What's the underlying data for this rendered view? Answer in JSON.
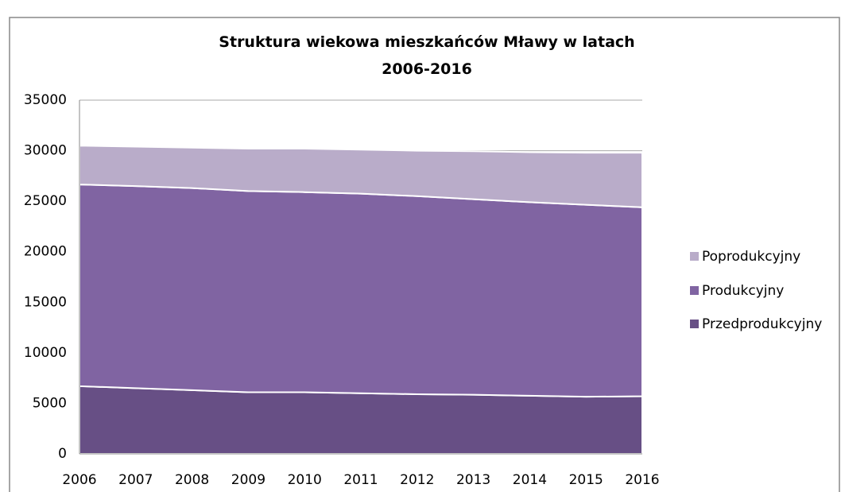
{
  "chart_data": {
    "type": "stacked_area",
    "title": "Struktura wiekowa mieszkańców Mławy w latach\n2006-2016",
    "categories": [
      "2006",
      "2007",
      "2008",
      "2009",
      "2010",
      "2011",
      "2012",
      "2013",
      "2014",
      "2015",
      "2016"
    ],
    "series": [
      {
        "name": "Przedprodukcyjny",
        "color": "#674f85",
        "values": [
          6700,
          6500,
          6300,
          6100,
          6100,
          6000,
          5900,
          5850,
          5750,
          5650,
          5700
        ]
      },
      {
        "name": "Produkcyjny",
        "color": "#8064a2",
        "values": [
          19950,
          20000,
          20000,
          19900,
          19800,
          19750,
          19600,
          19350,
          19150,
          19000,
          18700
        ]
      },
      {
        "name": "Poprodukcyjny",
        "color": "#b9acc9",
        "values": [
          3850,
          3900,
          4000,
          4200,
          4300,
          4350,
          4500,
          4750,
          4950,
          5150,
          5400
        ]
      }
    ],
    "ylim": [
      0,
      35000
    ],
    "yticks": [
      0,
      5000,
      10000,
      15000,
      20000,
      25000,
      30000,
      35000
    ],
    "grid": true,
    "legend": "right"
  }
}
